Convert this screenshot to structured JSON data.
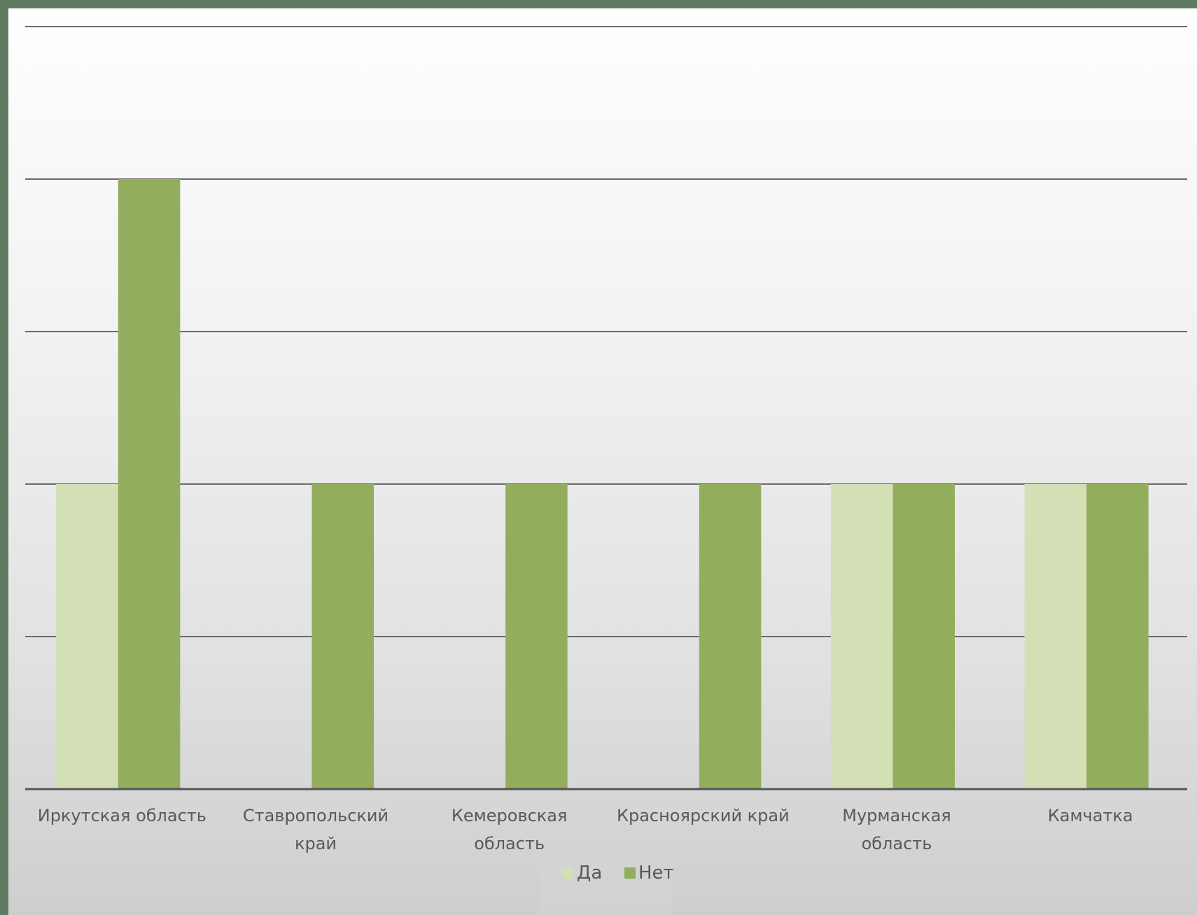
{
  "chart_data": {
    "type": "bar",
    "categories": [
      [
        "Иркутская область"
      ],
      [
        "Ставропольский",
        "край"
      ],
      [
        "Кемеровская",
        "область"
      ],
      [
        "Красноярский край"
      ],
      [
        "Мурманская",
        "область"
      ],
      [
        "Камчатка"
      ]
    ],
    "series": [
      {
        "name": "Да",
        "values": [
          2,
          0,
          0,
          0,
          2,
          2
        ],
        "color": "#d3e0b5"
      },
      {
        "name": "Нет",
        "values": [
          4,
          2,
          2,
          2,
          2,
          2
        ],
        "color": "#93ad5f"
      }
    ],
    "ylim": [
      0,
      5
    ],
    "y_gridlines": [
      0,
      1,
      2,
      3,
      4,
      5
    ],
    "grid": true,
    "legend_position": "bottom-center",
    "title": "",
    "xlabel": "",
    "ylabel": ""
  }
}
